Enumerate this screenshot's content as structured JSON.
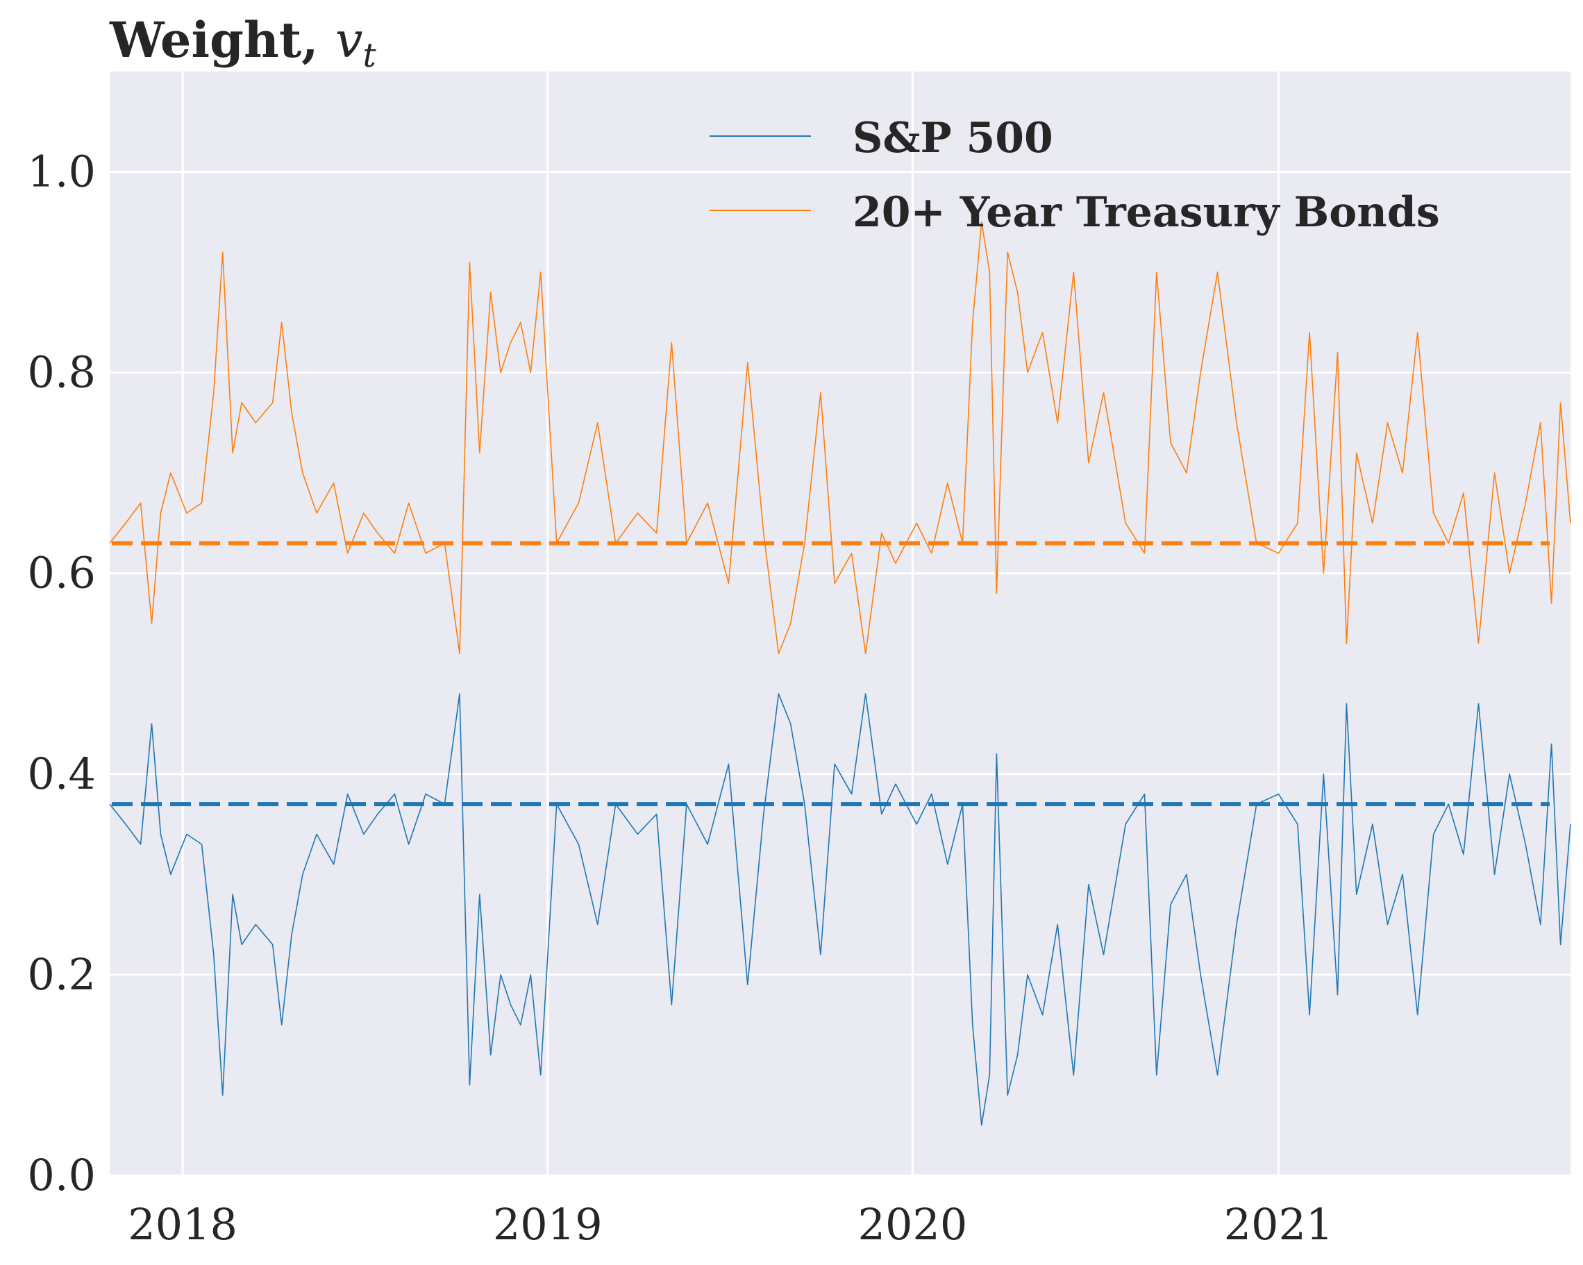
{
  "chart_data": {
    "type": "line",
    "title": "Weight, ",
    "title_math_symbol": "v",
    "title_math_subscript": "t",
    "xlabel": "",
    "ylabel": "",
    "x_range": [
      "2017-10-20",
      "2021-10-20"
    ],
    "ylim": [
      0.0,
      1.1
    ],
    "x_tick_labels": [
      "2018",
      "2019",
      "2020",
      "2021"
    ],
    "x_ticks": [
      "2018-01-01",
      "2019-01-01",
      "2020-01-01",
      "2021-01-01"
    ],
    "y_tick_labels": [
      "0.0",
      "0.2",
      "0.4",
      "0.6",
      "0.8",
      "1.0"
    ],
    "y_ticks": [
      0.0,
      0.2,
      0.4,
      0.6,
      0.8,
      1.0
    ],
    "grid": true,
    "background": "#eaeaf2",
    "legend_position": "top-right",
    "series": [
      {
        "name": "S&P 500",
        "color": "#1f77b4",
        "baseline": 0.37,
        "points": [
          [
            "2017-10-20",
            0.37
          ],
          [
            "2017-11-05",
            0.35
          ],
          [
            "2017-11-20",
            0.33
          ],
          [
            "2017-12-01",
            0.45
          ],
          [
            "2017-12-10",
            0.34
          ],
          [
            "2017-12-20",
            0.3
          ],
          [
            "2018-01-05",
            0.34
          ],
          [
            "2018-01-20",
            0.33
          ],
          [
            "2018-02-01",
            0.22
          ],
          [
            "2018-02-10",
            0.08
          ],
          [
            "2018-02-20",
            0.28
          ],
          [
            "2018-03-01",
            0.23
          ],
          [
            "2018-03-15",
            0.25
          ],
          [
            "2018-04-01",
            0.23
          ],
          [
            "2018-04-10",
            0.15
          ],
          [
            "2018-04-20",
            0.24
          ],
          [
            "2018-05-01",
            0.3
          ],
          [
            "2018-05-15",
            0.34
          ],
          [
            "2018-06-01",
            0.31
          ],
          [
            "2018-06-15",
            0.38
          ],
          [
            "2018-07-01",
            0.34
          ],
          [
            "2018-07-15",
            0.36
          ],
          [
            "2018-08-01",
            0.38
          ],
          [
            "2018-08-15",
            0.33
          ],
          [
            "2018-09-01",
            0.38
          ],
          [
            "2018-09-20",
            0.37
          ],
          [
            "2018-10-05",
            0.48
          ],
          [
            "2018-10-15",
            0.09
          ],
          [
            "2018-10-25",
            0.28
          ],
          [
            "2018-11-05",
            0.12
          ],
          [
            "2018-11-15",
            0.2
          ],
          [
            "2018-11-25",
            0.17
          ],
          [
            "2018-12-05",
            0.15
          ],
          [
            "2018-12-15",
            0.2
          ],
          [
            "2018-12-25",
            0.1
          ],
          [
            "2019-01-10",
            0.37
          ],
          [
            "2019-02-01",
            0.33
          ],
          [
            "2019-02-20",
            0.25
          ],
          [
            "2019-03-10",
            0.37
          ],
          [
            "2019-04-01",
            0.34
          ],
          [
            "2019-04-20",
            0.36
          ],
          [
            "2019-05-05",
            0.17
          ],
          [
            "2019-05-20",
            0.37
          ],
          [
            "2019-06-10",
            0.33
          ],
          [
            "2019-07-01",
            0.41
          ],
          [
            "2019-07-20",
            0.19
          ],
          [
            "2019-08-05",
            0.36
          ],
          [
            "2019-08-20",
            0.48
          ],
          [
            "2019-09-01",
            0.45
          ],
          [
            "2019-09-15",
            0.37
          ],
          [
            "2019-10-01",
            0.22
          ],
          [
            "2019-10-15",
            0.41
          ],
          [
            "2019-11-01",
            0.38
          ],
          [
            "2019-11-15",
            0.48
          ],
          [
            "2019-12-01",
            0.36
          ],
          [
            "2019-12-15",
            0.39
          ],
          [
            "2020-01-05",
            0.35
          ],
          [
            "2020-01-20",
            0.38
          ],
          [
            "2020-02-05",
            0.31
          ],
          [
            "2020-02-20",
            0.37
          ],
          [
            "2020-03-01",
            0.15
          ],
          [
            "2020-03-10",
            0.05
          ],
          [
            "2020-03-18",
            0.1
          ],
          [
            "2020-03-25",
            0.42
          ],
          [
            "2020-04-05",
            0.08
          ],
          [
            "2020-04-15",
            0.12
          ],
          [
            "2020-04-25",
            0.2
          ],
          [
            "2020-05-10",
            0.16
          ],
          [
            "2020-05-25",
            0.25
          ],
          [
            "2020-06-10",
            0.1
          ],
          [
            "2020-06-25",
            0.29
          ],
          [
            "2020-07-10",
            0.22
          ],
          [
            "2020-08-01",
            0.35
          ],
          [
            "2020-08-20",
            0.38
          ],
          [
            "2020-09-01",
            0.1
          ],
          [
            "2020-09-15",
            0.27
          ],
          [
            "2020-10-01",
            0.3
          ],
          [
            "2020-10-15",
            0.2
          ],
          [
            "2020-11-01",
            0.1
          ],
          [
            "2020-11-20",
            0.25
          ],
          [
            "2020-12-10",
            0.37
          ],
          [
            "2021-01-01",
            0.38
          ],
          [
            "2021-01-20",
            0.35
          ],
          [
            "2021-02-01",
            0.16
          ],
          [
            "2021-02-15",
            0.4
          ],
          [
            "2021-03-01",
            0.18
          ],
          [
            "2021-03-10",
            0.47
          ],
          [
            "2021-03-20",
            0.28
          ],
          [
            "2021-04-05",
            0.35
          ],
          [
            "2021-04-20",
            0.25
          ],
          [
            "2021-05-05",
            0.3
          ],
          [
            "2021-05-20",
            0.16
          ],
          [
            "2021-06-05",
            0.34
          ],
          [
            "2021-06-20",
            0.37
          ],
          [
            "2021-07-05",
            0.32
          ],
          [
            "2021-07-20",
            0.47
          ],
          [
            "2021-08-05",
            0.3
          ],
          [
            "2021-08-20",
            0.4
          ],
          [
            "2021-09-05",
            0.33
          ],
          [
            "2021-09-20",
            0.25
          ],
          [
            "2021-10-01",
            0.43
          ],
          [
            "2021-10-10",
            0.23
          ],
          [
            "2021-10-20",
            0.35
          ]
        ]
      },
      {
        "name": "20+ Year Treasury Bonds",
        "color": "#ff7f0e",
        "baseline": 0.63,
        "points": [
          [
            "2017-10-20",
            0.63
          ],
          [
            "2017-11-05",
            0.65
          ],
          [
            "2017-11-20",
            0.67
          ],
          [
            "2017-12-01",
            0.55
          ],
          [
            "2017-12-10",
            0.66
          ],
          [
            "2017-12-20",
            0.7
          ],
          [
            "2018-01-05",
            0.66
          ],
          [
            "2018-01-20",
            0.67
          ],
          [
            "2018-02-01",
            0.78
          ],
          [
            "2018-02-10",
            0.92
          ],
          [
            "2018-02-20",
            0.72
          ],
          [
            "2018-03-01",
            0.77
          ],
          [
            "2018-03-15",
            0.75
          ],
          [
            "2018-04-01",
            0.77
          ],
          [
            "2018-04-10",
            0.85
          ],
          [
            "2018-04-20",
            0.76
          ],
          [
            "2018-05-01",
            0.7
          ],
          [
            "2018-05-15",
            0.66
          ],
          [
            "2018-06-01",
            0.69
          ],
          [
            "2018-06-15",
            0.62
          ],
          [
            "2018-07-01",
            0.66
          ],
          [
            "2018-07-15",
            0.64
          ],
          [
            "2018-08-01",
            0.62
          ],
          [
            "2018-08-15",
            0.67
          ],
          [
            "2018-09-01",
            0.62
          ],
          [
            "2018-09-20",
            0.63
          ],
          [
            "2018-10-05",
            0.52
          ],
          [
            "2018-10-15",
            0.91
          ],
          [
            "2018-10-25",
            0.72
          ],
          [
            "2018-11-05",
            0.88
          ],
          [
            "2018-11-15",
            0.8
          ],
          [
            "2018-11-25",
            0.83
          ],
          [
            "2018-12-05",
            0.85
          ],
          [
            "2018-12-15",
            0.8
          ],
          [
            "2018-12-25",
            0.9
          ],
          [
            "2019-01-10",
            0.63
          ],
          [
            "2019-02-01",
            0.67
          ],
          [
            "2019-02-20",
            0.75
          ],
          [
            "2019-03-10",
            0.63
          ],
          [
            "2019-04-01",
            0.66
          ],
          [
            "2019-04-20",
            0.64
          ],
          [
            "2019-05-05",
            0.83
          ],
          [
            "2019-05-20",
            0.63
          ],
          [
            "2019-06-10",
            0.67
          ],
          [
            "2019-07-01",
            0.59
          ],
          [
            "2019-07-20",
            0.81
          ],
          [
            "2019-08-05",
            0.64
          ],
          [
            "2019-08-20",
            0.52
          ],
          [
            "2019-09-01",
            0.55
          ],
          [
            "2019-09-15",
            0.63
          ],
          [
            "2019-10-01",
            0.78
          ],
          [
            "2019-10-15",
            0.59
          ],
          [
            "2019-11-01",
            0.62
          ],
          [
            "2019-11-15",
            0.52
          ],
          [
            "2019-12-01",
            0.64
          ],
          [
            "2019-12-15",
            0.61
          ],
          [
            "2020-01-05",
            0.65
          ],
          [
            "2020-01-20",
            0.62
          ],
          [
            "2020-02-05",
            0.69
          ],
          [
            "2020-02-20",
            0.63
          ],
          [
            "2020-03-01",
            0.85
          ],
          [
            "2020-03-10",
            0.95
          ],
          [
            "2020-03-18",
            0.9
          ],
          [
            "2020-03-25",
            0.58
          ],
          [
            "2020-04-05",
            0.92
          ],
          [
            "2020-04-15",
            0.88
          ],
          [
            "2020-04-25",
            0.8
          ],
          [
            "2020-05-10",
            0.84
          ],
          [
            "2020-05-25",
            0.75
          ],
          [
            "2020-06-10",
            0.9
          ],
          [
            "2020-06-25",
            0.71
          ],
          [
            "2020-07-10",
            0.78
          ],
          [
            "2020-08-01",
            0.65
          ],
          [
            "2020-08-20",
            0.62
          ],
          [
            "2020-09-01",
            0.9
          ],
          [
            "2020-09-15",
            0.73
          ],
          [
            "2020-10-01",
            0.7
          ],
          [
            "2020-10-15",
            0.8
          ],
          [
            "2020-11-01",
            0.9
          ],
          [
            "2020-11-20",
            0.75
          ],
          [
            "2020-12-10",
            0.63
          ],
          [
            "2021-01-01",
            0.62
          ],
          [
            "2021-01-20",
            0.65
          ],
          [
            "2021-02-01",
            0.84
          ],
          [
            "2021-02-15",
            0.6
          ],
          [
            "2021-03-01",
            0.82
          ],
          [
            "2021-03-10",
            0.53
          ],
          [
            "2021-03-20",
            0.72
          ],
          [
            "2021-04-05",
            0.65
          ],
          [
            "2021-04-20",
            0.75
          ],
          [
            "2021-05-05",
            0.7
          ],
          [
            "2021-05-20",
            0.84
          ],
          [
            "2021-06-05",
            0.66
          ],
          [
            "2021-06-20",
            0.63
          ],
          [
            "2021-07-05",
            0.68
          ],
          [
            "2021-07-20",
            0.53
          ],
          [
            "2021-08-05",
            0.7
          ],
          [
            "2021-08-20",
            0.6
          ],
          [
            "2021-09-05",
            0.67
          ],
          [
            "2021-09-20",
            0.75
          ],
          [
            "2021-10-01",
            0.57
          ],
          [
            "2021-10-10",
            0.77
          ],
          [
            "2021-10-20",
            0.65
          ]
        ]
      }
    ]
  }
}
